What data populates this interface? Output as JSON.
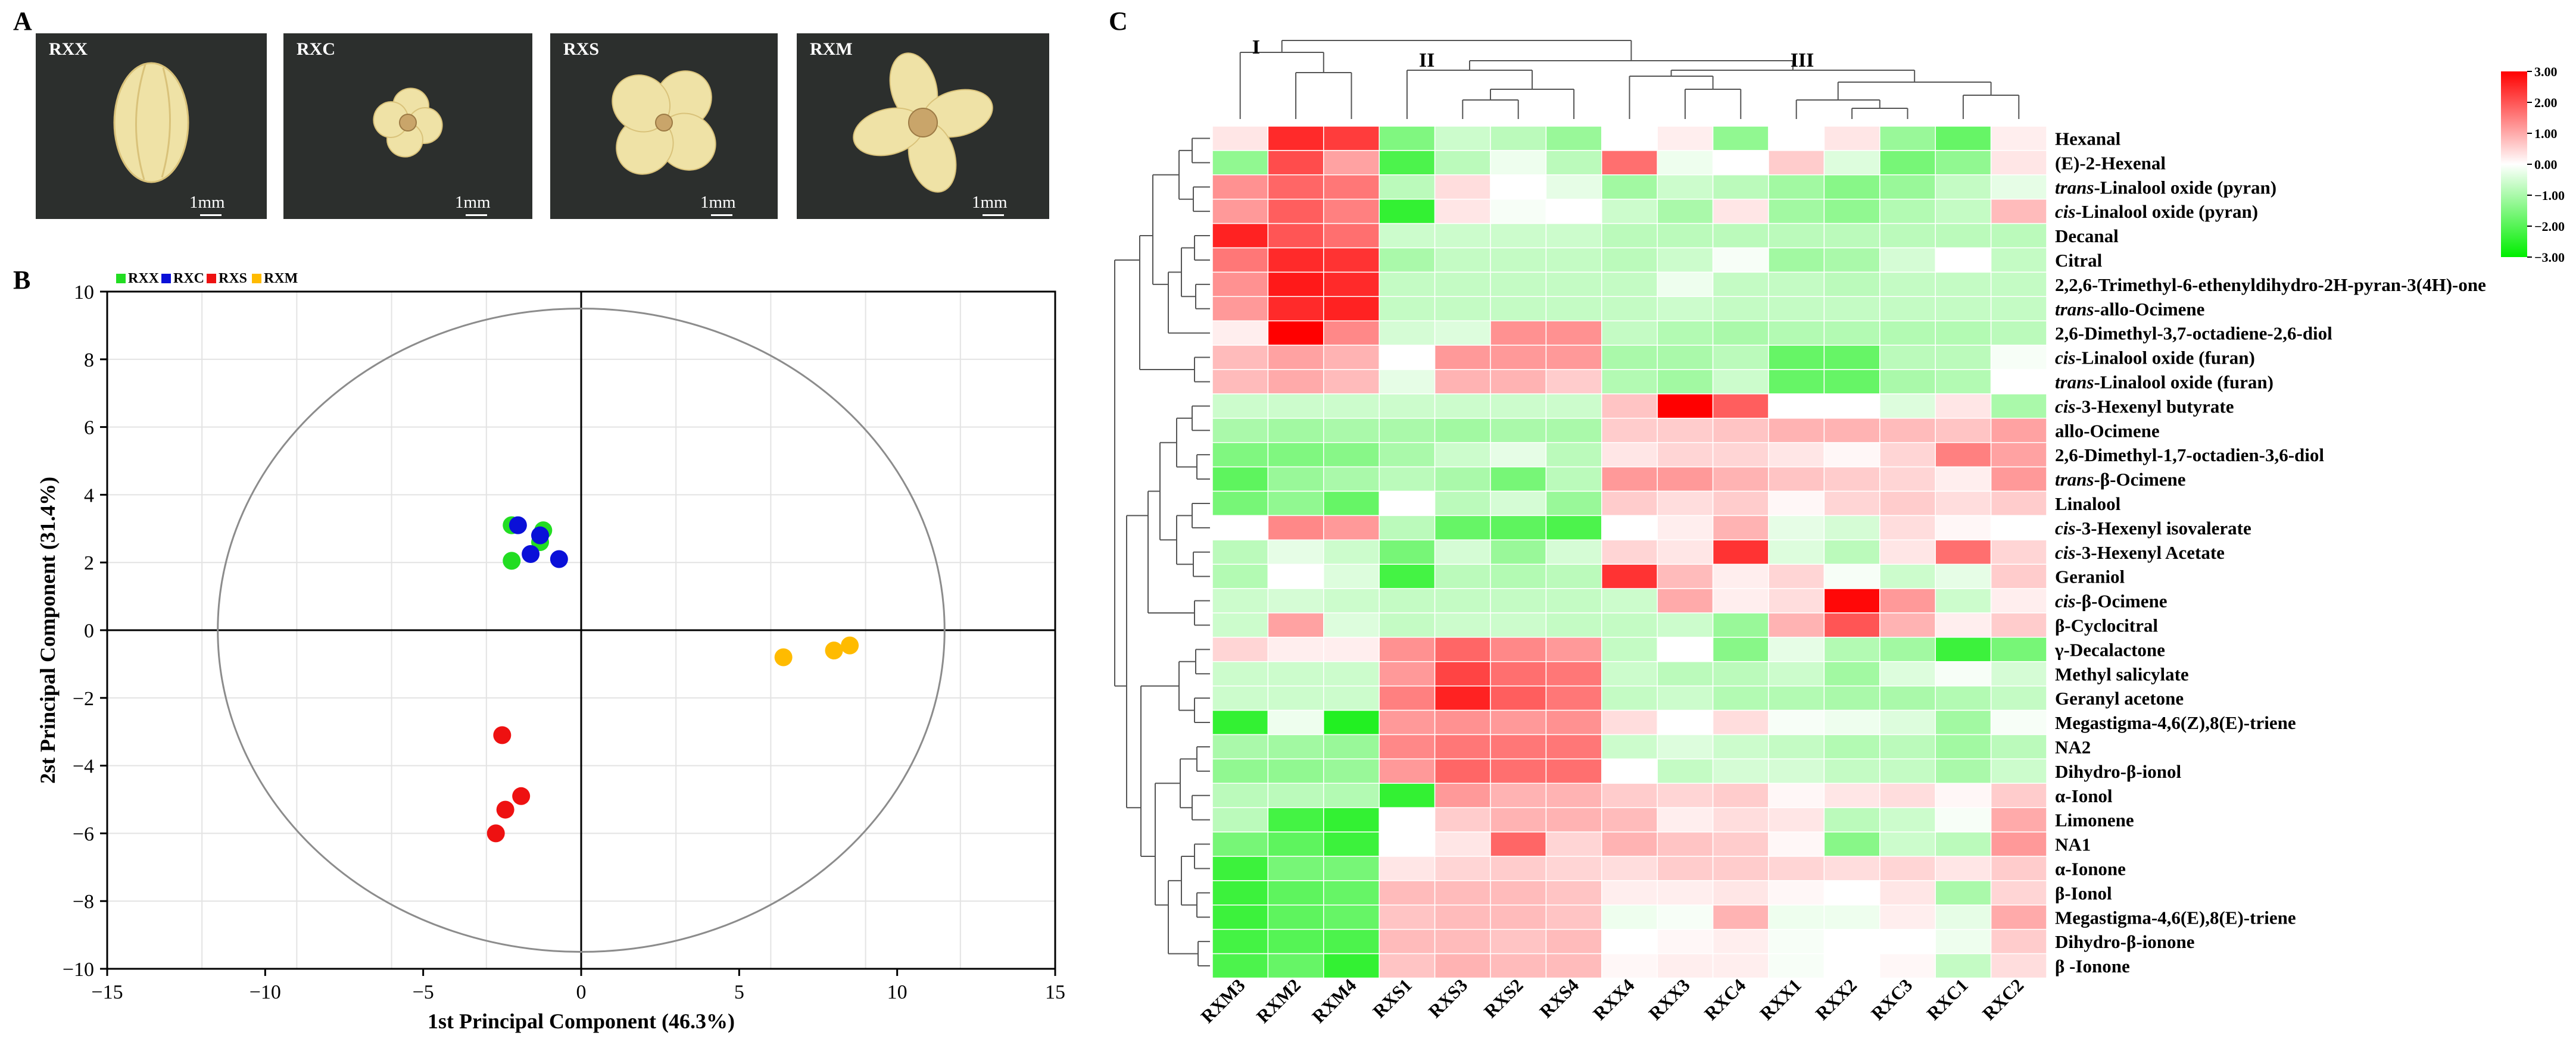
{
  "panels": {
    "a": "A",
    "b": "B",
    "c": "C"
  },
  "photos": [
    {
      "label": "RXX",
      "scale": "1mm",
      "flower": "closed-bud"
    },
    {
      "label": "RXC",
      "scale": "1mm",
      "flower": "small-open"
    },
    {
      "label": "RXS",
      "scale": "1mm",
      "flower": "open"
    },
    {
      "label": "RXM",
      "scale": "1mm",
      "flower": "fully-open"
    }
  ],
  "colors": {
    "RXX": "#22dd22",
    "RXC": "#0a10d8",
    "RXS": "#ee1111",
    "RXM": "#ffbb00",
    "heat_high": "#ff0000",
    "heat_mid": "#ffffff",
    "heat_low": "#00ee00",
    "photo_bg": "#2c2f2d"
  },
  "chart_data": [
    {
      "type": "scatter",
      "xlabel": "1st Principal Component (46.3%)",
      "ylabel": "2st Principal Component (31.4%)",
      "xlim": [
        -15,
        15
      ],
      "ylim": [
        -10,
        10
      ],
      "xticks": [
        -15,
        -10,
        -5,
        0,
        5,
        10,
        15
      ],
      "yticks": [
        -10,
        -8,
        -6,
        -4,
        -2,
        0,
        2,
        4,
        6,
        8,
        10
      ],
      "xtick_labels": [
        "−15",
        "−10",
        "−5",
        "0",
        "5",
        "10",
        "15"
      ],
      "ytick_labels": [
        "−10",
        "−8",
        "−6",
        "−4",
        "−2",
        "0",
        "2",
        "4",
        "6",
        "8",
        "10"
      ],
      "grid": true,
      "legend_position": "top-left",
      "confidence_ellipse": {
        "cx": 0,
        "cy": 0,
        "rx": 11.5,
        "ry": 9.5
      },
      "series": [
        {
          "name": "RXX",
          "points": [
            [
              -2.2,
              3.1
            ],
            [
              -1.2,
              2.95
            ],
            [
              -1.3,
              2.6
            ],
            [
              -2.2,
              2.05
            ]
          ]
        },
        {
          "name": "RXC",
          "points": [
            [
              -2.0,
              3.1
            ],
            [
              -1.3,
              2.8
            ],
            [
              -1.6,
              2.25
            ],
            [
              -0.7,
              2.1
            ]
          ]
        },
        {
          "name": "RXS",
          "points": [
            [
              -2.5,
              -3.1
            ],
            [
              -1.9,
              -4.9
            ],
            [
              -2.4,
              -5.3
            ],
            [
              -2.7,
              -6.0
            ]
          ]
        },
        {
          "name": "RXM",
          "points": [
            [
              6.4,
              -0.8
            ],
            [
              8.0,
              -0.6
            ],
            [
              8.5,
              -0.45
            ]
          ]
        }
      ]
    },
    {
      "type": "heatmap",
      "columns": [
        "RXM3",
        "RXM2",
        "RXM4",
        "RXS1",
        "RXS3",
        "RXS2",
        "RXS4",
        "RXX4",
        "RXX3",
        "RXC4",
        "RXX1",
        "RXX2",
        "RXC3",
        "RXC1",
        "RXC2"
      ],
      "column_clusters": [
        "I",
        "II",
        "III"
      ],
      "colorbar": {
        "min": -3,
        "max": 3,
        "ticks": [
          "3.00",
          "2.00",
          "1.00",
          "0.00",
          "−1.00",
          "−2.00",
          "−3.00"
        ]
      },
      "rows": [
        {
          "label": "Hexanal",
          "values": [
            0.3,
            2.5,
            2.3,
            -1.5,
            -0.6,
            -0.8,
            -1.2,
            0.0,
            0.2,
            -1.3,
            0.0,
            0.3,
            -1.2,
            -1.8,
            0.2
          ]
        },
        {
          "label": "(E)-2-Hexenal",
          "values": [
            -1.3,
            2.1,
            1.1,
            -2.1,
            -0.8,
            -0.2,
            -0.8,
            1.7,
            -0.2,
            0.0,
            0.6,
            -0.4,
            -1.6,
            -1.3,
            0.3
          ]
        },
        {
          "label": "trans-Linalool oxide (pyran)",
          "prefix": "trans",
          "rest": "-Linalool oxide (pyran)",
          "values": [
            1.3,
            1.8,
            1.6,
            -0.8,
            0.4,
            0.0,
            -0.3,
            -1.1,
            -0.6,
            -0.8,
            -1.1,
            -1.4,
            -1.2,
            -0.7,
            -0.3
          ]
        },
        {
          "label": "cis-Linalool oxide (pyran)",
          "prefix": "cis",
          "rest": "-Linalool oxide (pyran)",
          "values": [
            1.2,
            1.9,
            1.5,
            -2.4,
            0.3,
            -0.1,
            0.0,
            -0.6,
            -1.0,
            0.3,
            -1.1,
            -1.3,
            -0.9,
            -0.7,
            0.8
          ]
        },
        {
          "label": "Decanal",
          "values": [
            2.6,
            2.0,
            1.7,
            -0.6,
            -0.6,
            -0.6,
            -0.6,
            -0.8,
            -0.8,
            -0.8,
            -0.8,
            -0.8,
            -0.8,
            -0.8,
            -0.8
          ]
        },
        {
          "label": "Citral",
          "values": [
            1.6,
            2.5,
            2.4,
            -1.0,
            -0.7,
            -0.7,
            -0.7,
            -0.8,
            -0.6,
            -0.1,
            -1.1,
            -1.0,
            -0.5,
            0.0,
            -0.7
          ]
        },
        {
          "label": "2,2,6-Trimethyl-6-ethenyldihydro-2H-pyran-3(4H)-one",
          "values": [
            1.3,
            2.7,
            2.5,
            -0.7,
            -0.7,
            -0.7,
            -0.7,
            -0.7,
            -0.2,
            -0.7,
            -0.7,
            -0.8,
            -0.7,
            -0.7,
            -0.7
          ]
        },
        {
          "label": "trans-allo-Ocimene",
          "prefix": "trans",
          "rest": "-allo-Ocimene",
          "values": [
            1.2,
            2.5,
            2.6,
            -0.7,
            -0.7,
            -0.7,
            -0.7,
            -0.7,
            -0.6,
            -0.7,
            -0.7,
            -0.7,
            -0.7,
            -0.7,
            -0.7
          ]
        },
        {
          "label": "2,6-Dimethyl-3,7-octadiene-2,6-diol",
          "values": [
            0.2,
            3.0,
            1.4,
            -0.5,
            -0.4,
            1.3,
            1.3,
            -0.7,
            -0.9,
            -1.0,
            -0.9,
            -0.9,
            -0.9,
            -0.9,
            -0.8
          ]
        },
        {
          "label": "cis-Linalool oxide (furan)",
          "prefix": "cis",
          "rest": "-Linalool oxide (furan)",
          "values": [
            0.8,
            1.1,
            0.9,
            0.0,
            1.2,
            1.2,
            1.2,
            -1.0,
            -1.0,
            -0.8,
            -1.8,
            -1.8,
            -0.8,
            -0.8,
            -0.1
          ]
        },
        {
          "label": "trans-Linalool oxide (furan)",
          "prefix": "trans",
          "rest": "-Linalool oxide (furan)",
          "values": [
            0.8,
            1.0,
            0.8,
            -0.3,
            0.9,
            0.9,
            0.6,
            -0.9,
            -1.1,
            -0.6,
            -1.8,
            -1.8,
            -1.0,
            -0.9,
            0.0
          ]
        },
        {
          "label": "cis-3-Hexenyl butyrate",
          "prefix": "cis",
          "rest": "-3-Hexenyl butyrate",
          "values": [
            -0.6,
            -0.6,
            -0.6,
            -0.6,
            -0.6,
            -0.6,
            -0.6,
            0.7,
            3.0,
            1.9,
            0.0,
            0.0,
            -0.4,
            0.3,
            -1.0
          ]
        },
        {
          "label": "allo-Ocimene",
          "values": [
            -1.0,
            -1.1,
            -1.0,
            -1.0,
            -1.1,
            -1.0,
            -1.0,
            0.6,
            0.6,
            0.7,
            0.9,
            0.9,
            0.8,
            0.7,
            1.1
          ]
        },
        {
          "label": "2,6-Dimethyl-1,7-octadien-3,6-diol",
          "values": [
            -1.5,
            -1.5,
            -1.4,
            -1.0,
            -0.6,
            -0.3,
            -0.8,
            0.3,
            0.5,
            0.5,
            0.3,
            0.1,
            0.5,
            1.5,
            1.1
          ]
        },
        {
          "label": "trans-β-Ocimene",
          "prefix": "trans",
          "rest": "-β-Ocimene",
          "values": [
            -1.9,
            -1.2,
            -1.0,
            -0.8,
            -1.0,
            -1.6,
            -0.8,
            1.2,
            1.2,
            0.9,
            0.7,
            0.6,
            0.5,
            0.2,
            1.2
          ]
        },
        {
          "label": "Linalool",
          "values": [
            -1.6,
            -1.3,
            -1.8,
            0.0,
            -0.8,
            -0.5,
            -1.2,
            0.6,
            0.4,
            0.6,
            0.1,
            0.5,
            0.6,
            0.4,
            0.6
          ]
        },
        {
          "label": "cis-3-Hexenyl isovalerate",
          "prefix": "cis",
          "rest": "-3-Hexenyl isovalerate",
          "values": [
            0.0,
            1.4,
            1.2,
            -0.8,
            -1.8,
            -1.9,
            -2.1,
            0.0,
            0.2,
            0.9,
            -0.3,
            -0.5,
            0.4,
            0.1,
            0.0
          ]
        },
        {
          "label": "cis-3-Hexenyl Acetate",
          "prefix": "cis",
          "rest": "-3-Hexenyl Acetate",
          "values": [
            -0.8,
            -0.3,
            -0.6,
            -1.6,
            -0.5,
            -1.2,
            -0.5,
            0.5,
            0.3,
            2.4,
            -0.4,
            -0.8,
            0.3,
            1.7,
            0.5
          ]
        },
        {
          "label": "Geraniol",
          "values": [
            -0.9,
            0.0,
            -0.4,
            -2.2,
            -0.8,
            -0.9,
            -0.8,
            2.4,
            0.8,
            0.2,
            0.5,
            -0.1,
            -0.6,
            -0.3,
            0.6
          ]
        },
        {
          "label": "cis-β-Ocimene",
          "prefix": "cis",
          "rest": "-β-Ocimene",
          "values": [
            -0.6,
            -0.5,
            -0.6,
            -0.7,
            -0.7,
            -0.7,
            -0.7,
            -0.6,
            1.0,
            0.2,
            0.4,
            2.9,
            1.2,
            -0.6,
            0.2
          ]
        },
        {
          "label": "β-Cyclocitral",
          "values": [
            -0.6,
            1.1,
            -0.4,
            -0.7,
            -0.6,
            -0.6,
            -0.7,
            -0.7,
            -0.6,
            -1.2,
            0.9,
            2.0,
            0.9,
            0.2,
            0.6
          ]
        },
        {
          "label": "γ-Decalactone",
          "values": [
            0.5,
            0.2,
            0.2,
            1.3,
            1.8,
            1.4,
            1.2,
            -0.7,
            0.0,
            -1.4,
            -0.3,
            -0.9,
            -1.1,
            -2.3,
            -1.6
          ]
        },
        {
          "label": "Methyl salicylate",
          "values": [
            -0.6,
            -0.6,
            -0.6,
            1.2,
            2.2,
            1.7,
            1.6,
            -0.6,
            -0.8,
            -0.8,
            -0.6,
            -1.1,
            -0.4,
            -0.1,
            -0.5
          ]
        },
        {
          "label": "Geranyl acetone",
          "values": [
            -0.6,
            -0.6,
            -0.6,
            1.5,
            2.6,
            1.9,
            1.6,
            -0.7,
            -0.6,
            -0.9,
            -0.9,
            -1.0,
            -1.0,
            -0.9,
            -0.7
          ]
        },
        {
          "label": "Megastigma-4,6(Z),8(E)-triene",
          "values": [
            -2.4,
            -0.2,
            -2.6,
            1.2,
            1.3,
            1.2,
            1.3,
            0.4,
            0.0,
            0.4,
            -0.1,
            -0.2,
            -0.4,
            -1.1,
            -0.1
          ]
        },
        {
          "label": "NA2",
          "values": [
            -1.0,
            -1.1,
            -1.2,
            1.4,
            1.6,
            1.6,
            1.6,
            -0.6,
            -0.4,
            -0.6,
            -0.7,
            -0.9,
            -0.8,
            -1.1,
            -0.8
          ]
        },
        {
          "label": "Dihydro-β-ionol",
          "values": [
            -1.3,
            -1.3,
            -1.2,
            1.2,
            1.8,
            1.7,
            1.7,
            0.0,
            -0.7,
            -0.5,
            -0.5,
            -0.7,
            -0.7,
            -1.0,
            -0.6
          ]
        },
        {
          "label": "α-Ionol",
          "values": [
            -0.8,
            -0.8,
            -0.9,
            -2.4,
            1.2,
            0.9,
            0.9,
            0.6,
            0.5,
            0.6,
            0.1,
            0.3,
            0.4,
            0.1,
            0.6
          ]
        },
        {
          "label": "Limonene",
          "values": [
            -0.8,
            -2.2,
            -2.4,
            0.0,
            0.6,
            0.9,
            0.9,
            0.8,
            0.2,
            0.4,
            0.3,
            -0.8,
            -0.6,
            -0.1,
            1.0
          ]
        },
        {
          "label": "NA1",
          "values": [
            -1.6,
            -1.9,
            -2.3,
            0.0,
            0.3,
            1.8,
            0.5,
            0.9,
            0.7,
            0.6,
            0.1,
            -1.4,
            -0.6,
            -0.8,
            1.2
          ]
        },
        {
          "label": "α-Ionone",
          "values": [
            -2.3,
            -1.6,
            -1.6,
            0.3,
            0.5,
            0.6,
            0.5,
            0.4,
            0.6,
            0.6,
            0.5,
            0.4,
            0.5,
            0.3,
            0.6
          ]
        },
        {
          "label": "β-Ionol",
          "values": [
            -2.3,
            -1.9,
            -1.8,
            0.8,
            0.8,
            0.8,
            0.7,
            0.2,
            0.2,
            0.3,
            0.1,
            0.0,
            0.3,
            -1.0,
            0.5
          ]
        },
        {
          "label": "Megastigma-4,6(E),8(E)-triene",
          "values": [
            -2.3,
            -1.9,
            -1.8,
            0.7,
            0.8,
            0.8,
            0.7,
            -0.2,
            -0.1,
            0.9,
            -0.2,
            -0.2,
            0.2,
            -0.3,
            1.0
          ]
        },
        {
          "label": "Dihydro-β-ionone",
          "values": [
            -2.2,
            -2.0,
            -2.1,
            0.8,
            0.8,
            0.7,
            0.8,
            0.0,
            0.1,
            0.2,
            -0.1,
            0.0,
            0.0,
            -0.2,
            0.6
          ]
        },
        {
          "label": "β -Ionone",
          "values": [
            -2.1,
            -1.8,
            -2.4,
            0.7,
            0.9,
            0.8,
            0.8,
            0.1,
            0.2,
            0.2,
            -0.1,
            0.0,
            0.1,
            -0.7,
            0.4
          ]
        }
      ]
    }
  ]
}
